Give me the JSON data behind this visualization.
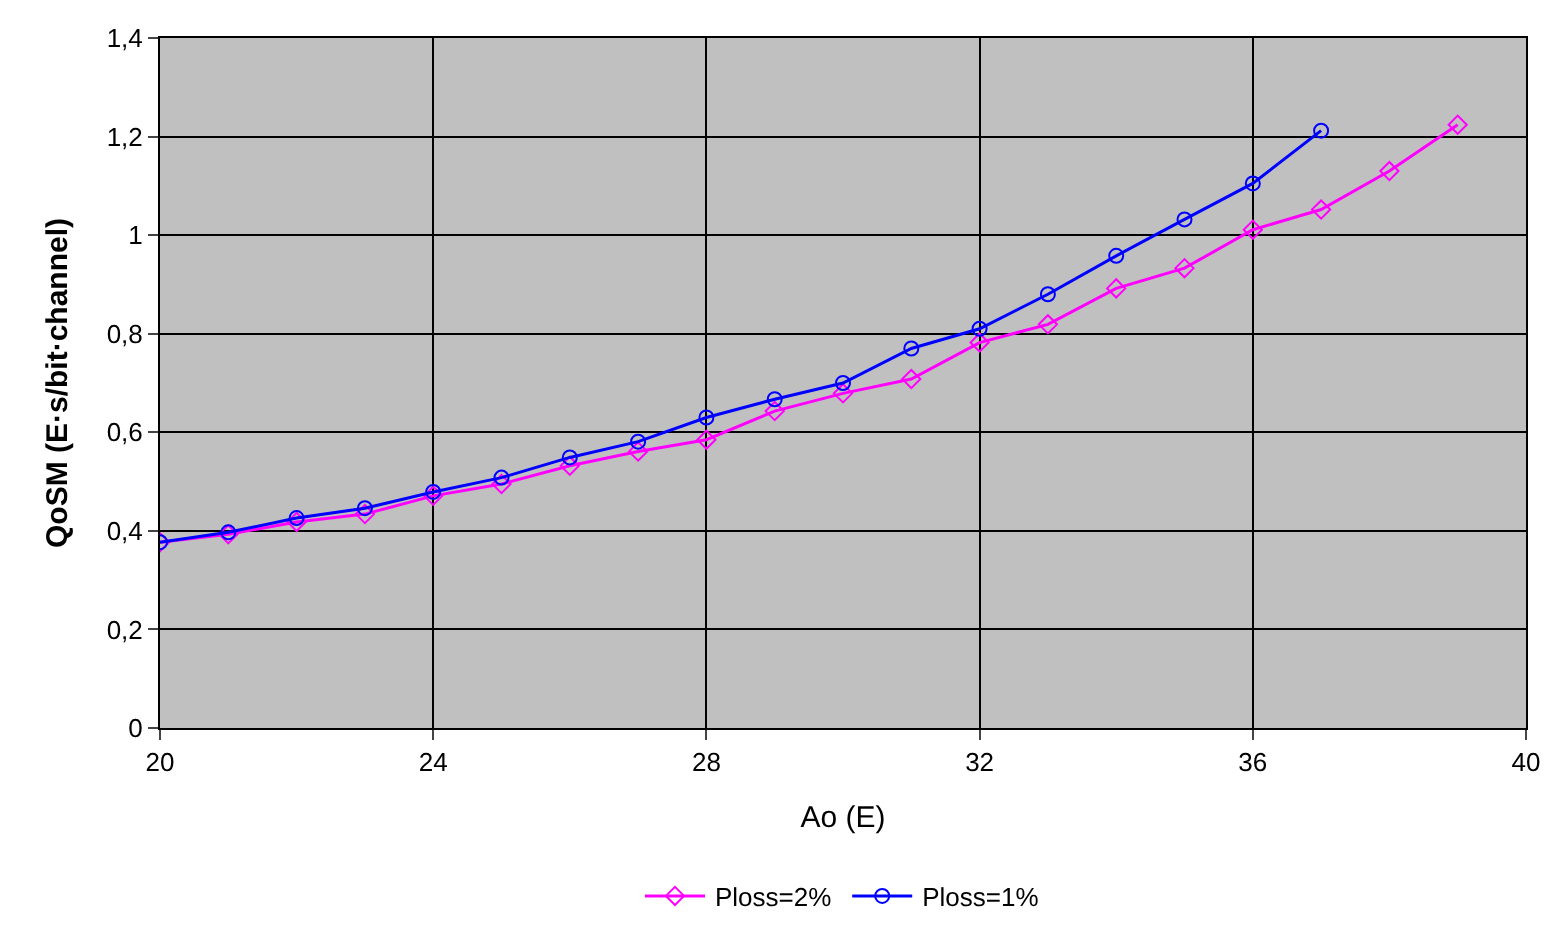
{
  "chart_data": {
    "type": "line",
    "xlabel": "Ao (E)",
    "ylabel": "QoSM (E·s/bit·channel)",
    "xlim": [
      20,
      40
    ],
    "xticks": [
      20,
      24,
      28,
      32,
      36,
      40
    ],
    "ylim": [
      0,
      1.4
    ],
    "yticks": [
      0,
      {
        "value": 0.2,
        "label": "0,2"
      },
      {
        "value": 0.4,
        "label": "0,4"
      },
      {
        "value": 0.6,
        "label": "0,6"
      },
      {
        "value": 0.8,
        "label": "0,8"
      },
      1,
      {
        "value": 1.2,
        "label": "1,2"
      },
      {
        "value": 1.4,
        "label": "1,4"
      }
    ],
    "grid": true,
    "legend": "bottom",
    "series": [
      {
        "name": "Ploss=2%",
        "color": "#ff00ff",
        "marker": "diamond",
        "x": [
          20,
          21,
          22,
          23,
          24,
          25,
          26,
          27,
          28,
          29,
          30,
          31,
          32,
          33,
          34,
          35,
          36,
          37,
          38,
          39
        ],
        "values": [
          0.377,
          0.393,
          0.418,
          0.434,
          0.471,
          0.495,
          0.532,
          0.561,
          0.585,
          0.643,
          0.679,
          0.708,
          0.782,
          0.819,
          0.892,
          0.933,
          1.011,
          1.052,
          1.13,
          1.224
        ]
      },
      {
        "name": "Ploss=1%",
        "color": "#0000ff",
        "marker": "circle",
        "x": [
          20,
          21,
          22,
          23,
          24,
          25,
          26,
          27,
          28,
          29,
          30,
          31,
          32,
          33,
          34,
          35,
          36,
          37
        ],
        "values": [
          0.377,
          0.397,
          0.426,
          0.446,
          0.479,
          0.508,
          0.549,
          0.581,
          0.63,
          0.667,
          0.7,
          0.77,
          0.81,
          0.88,
          0.958,
          1.032,
          1.105,
          1.212
        ]
      }
    ]
  }
}
